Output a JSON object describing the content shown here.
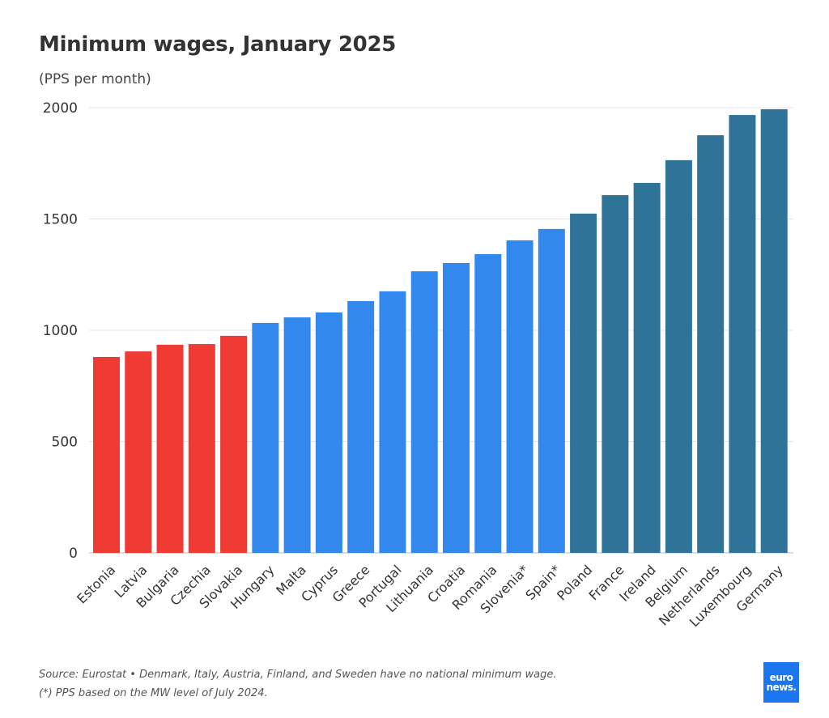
{
  "chart_data": {
    "type": "bar",
    "title": "Minimum wages, January 2025",
    "subtitle": "(PPS per month)",
    "categories": [
      "Estonia",
      "Latvia",
      "Bulgaria",
      "Czechia",
      "Slovakia",
      "Hungary",
      "Malta",
      "Cyprus",
      "Greece",
      "Portugal",
      "Lithuania",
      "Croatia",
      "Romania",
      "Slovenia*",
      "Spain*",
      "Poland",
      "France",
      "Ireland",
      "Belgium",
      "Netherlands",
      "Luxembourg",
      "Germany"
    ],
    "values": [
      880,
      905,
      935,
      938,
      975,
      1033,
      1058,
      1080,
      1131,
      1175,
      1265,
      1302,
      1342,
      1404,
      1455,
      1524,
      1607,
      1662,
      1764,
      1876,
      1967,
      1993
    ],
    "groups": [
      "low",
      "low",
      "low",
      "low",
      "low",
      "mid",
      "mid",
      "mid",
      "mid",
      "mid",
      "mid",
      "mid",
      "mid",
      "mid",
      "mid",
      "high",
      "high",
      "high",
      "high",
      "high",
      "high",
      "high"
    ],
    "colors": {
      "low": "#ef3b33",
      "mid": "#3388ee",
      "high": "#307399"
    },
    "ylim": [
      0,
      2000
    ],
    "yticks": [
      0,
      500,
      1000,
      1500,
      2000
    ],
    "grid": true,
    "xlabel": "",
    "ylabel": ""
  },
  "footer": {
    "source": "Source: Eurostat • Denmark, Italy, Austria, Finland, and Sweden have no national minimum wage.",
    "note": "(*) PPS based on the MW level of July 2024."
  },
  "logo": {
    "line1": "euro",
    "line2": "news."
  }
}
